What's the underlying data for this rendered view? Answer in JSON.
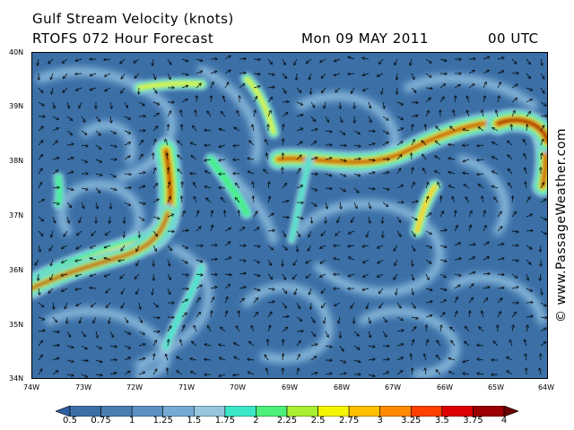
{
  "title": "Gulf Stream Velocity (knots)",
  "subtitle": "RTOFS 072 Hour Forecast",
  "forecast_date": "Mon 09 MAY 2011",
  "forecast_time": "00 UTC",
  "credit": "© www.PassageWeather.com",
  "axes": {
    "latitudes": [
      "40N",
      "39N",
      "38N",
      "37N",
      "36N",
      "35N",
      "34N"
    ],
    "longitudes": [
      "74W",
      "73W",
      "72W",
      "71W",
      "70W",
      "69W",
      "68W",
      "67W",
      "66W",
      "65W",
      "64W"
    ]
  },
  "legend": {
    "labels": [
      "0.5",
      "0.75",
      "1",
      "1.25",
      "1.5",
      "1.75",
      "2",
      "2.25",
      "2.5",
      "2.75",
      "3",
      "3.25",
      "3.5",
      "3.75",
      "4"
    ],
    "colors": [
      "#2d5fa0",
      "#3b6fa6",
      "#4a7eb2",
      "#5c90c2",
      "#77aad2",
      "#96c6de",
      "#3be7c8",
      "#4cf07a",
      "#a8f030",
      "#f4f400",
      "#ffc000",
      "#ff8a00",
      "#ff4000",
      "#dd0000",
      "#9a0000",
      "#6a0000"
    ]
  }
}
